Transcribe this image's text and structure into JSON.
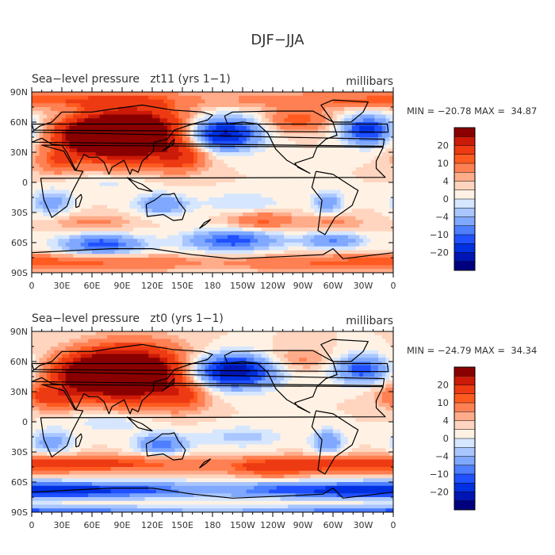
{
  "title": "DJF−JJA",
  "colors": [
    "#00007f",
    "#0015b3",
    "#0030e0",
    "#2050ff",
    "#4d7fff",
    "#80a8ff",
    "#a9c6ff",
    "#d6e6ff",
    "#fff2e4",
    "#ffd5bf",
    "#ffac8a",
    "#ff8052",
    "#ff5a20",
    "#ee3a12",
    "#cc1a08",
    "#8a0000"
  ],
  "continent_color": "#000000",
  "panels": [
    {
      "title": "Sea−level pressure   zt11 (yrs 1−1)",
      "units": "millibars",
      "stats": "MIN = −20.78 MAX =  34.87",
      "min": -20.78,
      "max": 34.87,
      "colorbar_labels": [
        "20",
        "10",
        "4",
        "0",
        "−4",
        "−10",
        "−20"
      ]
    },
    {
      "title": "Sea−level pressure   zt0 (yrs 1−1)",
      "units": "millibars",
      "stats": "MIN = −24.79 MAX =  34.34",
      "min": -24.79,
      "max": 34.34,
      "colorbar_labels": [
        "20",
        "10",
        "4",
        "0",
        "−4",
        "−10",
        "−20"
      ]
    }
  ],
  "lat_labels": [
    "90N",
    "60N",
    "30N",
    "0",
    "30S",
    "60S",
    "90S"
  ],
  "lon_labels": [
    "0",
    "30E",
    "60E",
    "90E",
    "120E",
    "150E",
    "180",
    "150W",
    "120W",
    "90W",
    "60W",
    "30W",
    "0"
  ]
}
